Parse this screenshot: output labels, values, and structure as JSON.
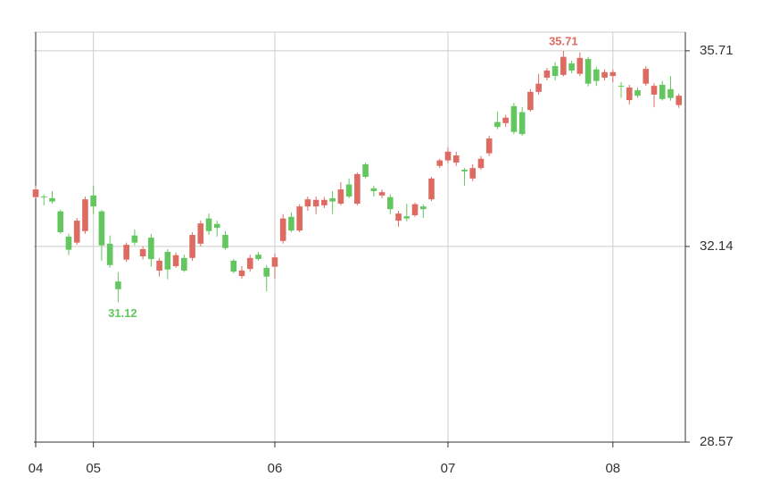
{
  "chart_data": {
    "type": "candlestick",
    "categories": [
      "04",
      null,
      null,
      null,
      null,
      null,
      null,
      "05",
      null,
      null,
      null,
      null,
      null,
      null,
      null,
      null,
      null,
      null,
      null,
      null,
      null,
      null,
      null,
      null,
      null,
      null,
      null,
      null,
      null,
      "06",
      null,
      null,
      null,
      null,
      null,
      null,
      null,
      null,
      null,
      null,
      null,
      null,
      null,
      null,
      null,
      null,
      null,
      null,
      null,
      null,
      "07",
      null,
      null,
      null,
      null,
      null,
      null,
      null,
      null,
      null,
      null,
      null,
      null,
      null,
      null,
      null,
      null,
      null,
      null,
      null,
      "08",
      null,
      null,
      null,
      null,
      null,
      null,
      null,
      null
    ],
    "open": [
      33.04,
      33.05,
      33.02,
      32.78,
      32.32,
      32.21,
      32.42,
      33.07,
      32.78,
      32.19,
      31.5,
      31.9,
      32.34,
      31.96,
      32.3,
      31.7,
      32.04,
      31.78,
      31.93,
      31.93,
      32.19,
      32.65,
      32.55,
      32.35,
      31.88,
      31.6,
      31.73,
      31.99,
      31.75,
      31.77,
      32.24,
      32.68,
      32.43,
      32.87,
      32.87,
      32.89,
      33.02,
      32.92,
      33.27,
      32.92,
      33.64,
      33.2,
      33.07,
      33.04,
      32.61,
      32.69,
      32.71,
      32.87,
      33.0,
      33.61,
      33.71,
      33.67,
      33.54,
      33.38,
      33.57,
      33.84,
      34.41,
      34.39,
      34.7,
      34.59,
      34.63,
      34.96,
      35.22,
      35.43,
      35.27,
      35.48,
      35.29,
      35.56,
      35.37,
      35.22,
      35.25,
      35.07,
      34.81,
      34.99,
      35.11,
      34.91,
      35.09,
      35.01,
      34.72
    ],
    "high": [
      33.25,
      33.09,
      33.15,
      32.81,
      32.37,
      32.66,
      33.05,
      33.25,
      32.81,
      32.34,
      31.67,
      32.21,
      32.45,
      32.14,
      32.37,
      31.93,
      32.09,
      32.03,
      31.99,
      32.4,
      32.61,
      32.74,
      32.61,
      32.42,
      31.91,
      31.78,
      31.99,
      32.04,
      31.8,
      32.01,
      32.73,
      32.76,
      32.91,
      33.05,
      33.05,
      33.04,
      33.15,
      33.31,
      33.38,
      33.49,
      33.67,
      33.25,
      33.18,
      33.09,
      32.79,
      32.92,
      32.94,
      32.91,
      33.41,
      33.74,
      33.95,
      33.87,
      33.57,
      33.64,
      33.79,
      34.16,
      34.6,
      34.54,
      34.76,
      34.68,
      35.01,
      35.29,
      35.4,
      35.5,
      35.71,
      35.53,
      35.68,
      35.6,
      35.42,
      35.37,
      35.37,
      35.14,
      35.09,
      35.04,
      35.43,
      35.12,
      35.16,
      35.25,
      34.93
    ],
    "low": [
      33.02,
      32.89,
      32.92,
      32.37,
      31.98,
      32.17,
      32.37,
      32.73,
      31.88,
      31.75,
      31.12,
      31.86,
      32.16,
      31.9,
      31.77,
      31.59,
      31.54,
      31.75,
      31.67,
      31.88,
      32.14,
      32.35,
      32.32,
      32.08,
      31.65,
      31.55,
      31.68,
      31.88,
      31.32,
      31.55,
      32.19,
      32.4,
      32.4,
      32.79,
      32.73,
      32.84,
      32.73,
      32.89,
      33.02,
      32.89,
      33.38,
      33.05,
      33.02,
      32.73,
      32.5,
      32.6,
      32.68,
      32.66,
      32.97,
      33.57,
      33.66,
      33.61,
      33.25,
      33.33,
      33.54,
      33.79,
      34.28,
      34.32,
      34.19,
      34.16,
      34.6,
      34.91,
      35.17,
      35.17,
      35.24,
      35.3,
      35.25,
      35.06,
      35.07,
      35.17,
      35.14,
      34.85,
      34.73,
      34.85,
      35.07,
      34.68,
      34.8,
      34.8,
      34.67
    ],
    "close": [
      33.18,
      33.04,
      32.96,
      32.4,
      32.08,
      32.61,
      33.0,
      32.87,
      32.16,
      31.8,
      31.36,
      32.17,
      32.21,
      32.09,
      31.91,
      31.88,
      31.72,
      31.98,
      31.7,
      32.35,
      32.56,
      32.42,
      32.48,
      32.11,
      31.68,
      31.7,
      31.93,
      31.91,
      31.59,
      31.94,
      32.65,
      32.43,
      32.87,
      33.0,
      32.99,
      32.99,
      32.96,
      33.18,
      33.05,
      33.46,
      33.41,
      33.15,
      33.13,
      32.82,
      32.74,
      32.65,
      32.91,
      32.82,
      33.38,
      33.71,
      33.87,
      33.8,
      33.51,
      33.57,
      33.74,
      34.11,
      34.32,
      34.49,
      34.23,
      34.19,
      34.96,
      35.11,
      35.35,
      35.25,
      35.6,
      35.35,
      35.58,
      35.11,
      35.16,
      35.32,
      35.32,
      35.06,
      35.04,
      34.89,
      35.38,
      35.07,
      34.83,
      34.85,
      34.89
    ],
    "up_color": "#dd6b61",
    "down_color": "#64c65e",
    "ylim": [
      28.57,
      36.05
    ],
    "yticks": [
      28.57,
      32.14,
      35.71
    ],
    "grid": true
  }
}
